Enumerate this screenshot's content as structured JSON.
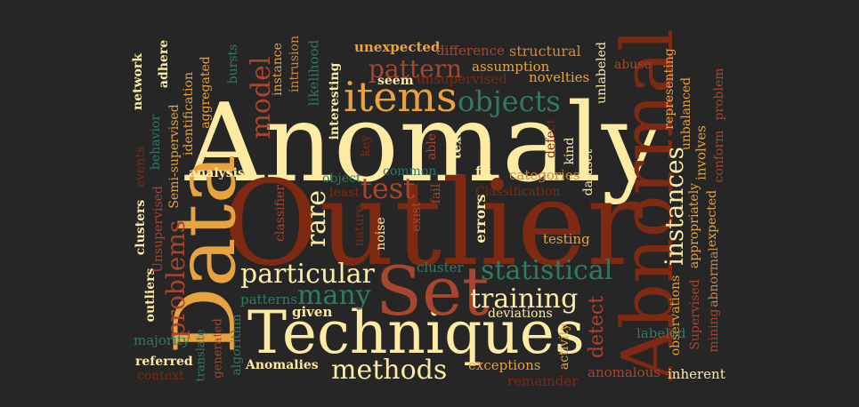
{
  "colors": {
    "background": "#262626",
    "cream": "#FDEBA4",
    "orange": "#E8A340",
    "rust": "#A8452C",
    "darkred": "#7E2A12",
    "green": "#2F7A62",
    "tan": "#C98A46"
  },
  "words": [
    {
      "text": "Anomaly"
    },
    {
      "text": "Outlier"
    },
    {
      "text": "Data"
    },
    {
      "text": "Abnormal"
    },
    {
      "text": "Techniques"
    },
    {
      "text": "Set"
    },
    {
      "text": "items"
    },
    {
      "text": "objects"
    },
    {
      "text": "pattern"
    },
    {
      "text": "model"
    },
    {
      "text": "test"
    },
    {
      "text": "rare"
    },
    {
      "text": "particular"
    },
    {
      "text": "many"
    },
    {
      "text": "training"
    },
    {
      "text": "statistical"
    },
    {
      "text": "methods"
    },
    {
      "text": "instances"
    },
    {
      "text": "problems"
    },
    {
      "text": "detect"
    },
    {
      "text": "unexpected"
    },
    {
      "text": "difference"
    },
    {
      "text": "structural"
    },
    {
      "text": "assumption"
    },
    {
      "text": "unsupervised"
    },
    {
      "text": "novelties"
    },
    {
      "text": "abuse"
    },
    {
      "text": "unlabeled"
    },
    {
      "text": "representing"
    },
    {
      "text": "unbalanced"
    },
    {
      "text": "problem"
    },
    {
      "text": "involves"
    },
    {
      "text": "conform"
    },
    {
      "text": "expected"
    },
    {
      "text": "abnormal"
    },
    {
      "text": "mining"
    },
    {
      "text": "Supervised"
    },
    {
      "text": "appropriately"
    },
    {
      "text": "observations"
    },
    {
      "text": "labeled"
    },
    {
      "text": "inherent"
    },
    {
      "text": "anomalous"
    },
    {
      "text": "remainder"
    },
    {
      "text": "exceptions"
    },
    {
      "text": "activity"
    },
    {
      "text": "deviations"
    },
    {
      "text": "cluster"
    },
    {
      "text": "testing"
    },
    {
      "text": "errors"
    },
    {
      "text": "Classification"
    },
    {
      "text": "categories"
    },
    {
      "text": "fit"
    },
    {
      "text": "dataset"
    },
    {
      "text": "kind"
    },
    {
      "text": "defect"
    },
    {
      "text": "text"
    },
    {
      "text": "able"
    },
    {
      "text": "key"
    },
    {
      "text": "seem"
    },
    {
      "text": "interesting"
    },
    {
      "text": "likelihood"
    },
    {
      "text": "intrusion"
    },
    {
      "text": "instance"
    },
    {
      "text": "common"
    },
    {
      "text": "object"
    },
    {
      "text": "least"
    },
    {
      "text": "classifier"
    },
    {
      "text": "nature"
    },
    {
      "text": "noise"
    },
    {
      "text": "exist"
    },
    {
      "text": "fail"
    },
    {
      "text": "patterns"
    },
    {
      "text": "given"
    },
    {
      "text": "Anomalies"
    },
    {
      "text": "algorithm"
    },
    {
      "text": "generated"
    },
    {
      "text": "translate"
    },
    {
      "text": "referred"
    },
    {
      "text": "context"
    },
    {
      "text": "majority"
    },
    {
      "text": "outliers"
    },
    {
      "text": "clusters"
    },
    {
      "text": "Unsupervised"
    },
    {
      "text": "events"
    },
    {
      "text": "analysis"
    },
    {
      "text": "network"
    },
    {
      "text": "behavior"
    },
    {
      "text": "Semi-supervised"
    },
    {
      "text": "adhere"
    },
    {
      "text": "identification"
    },
    {
      "text": "aggregated"
    },
    {
      "text": "bursts"
    }
  ]
}
